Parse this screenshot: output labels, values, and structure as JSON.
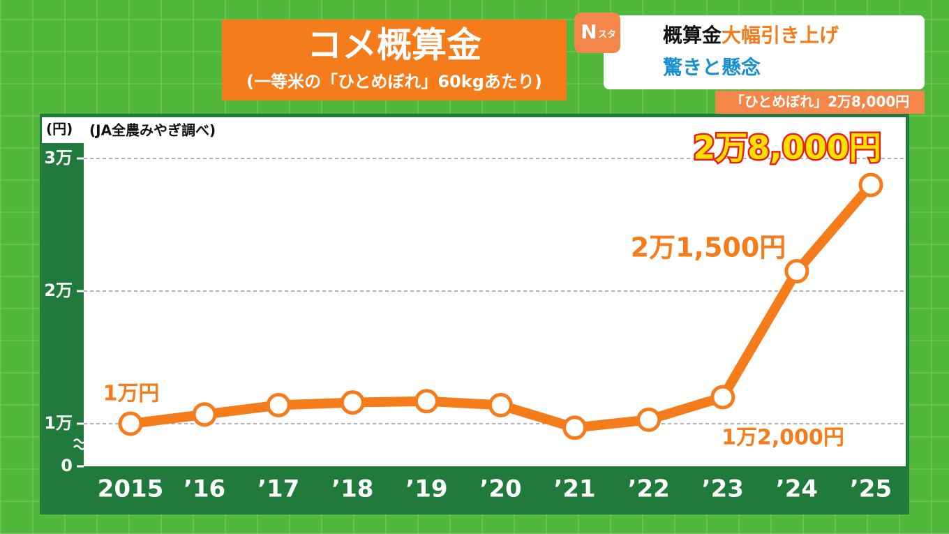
{
  "chart_data": {
    "type": "line",
    "title": "コメ概算金",
    "subtitle": "(一等米の「ひとめぼれ」60kgあたり)",
    "y_label": "(円)",
    "source": "(JA全農みやぎ調べ)",
    "categories": [
      "2015",
      "’16",
      "’17",
      "’18",
      "’19",
      "’20",
      "’21",
      "’22",
      "’23",
      "’24",
      "’25"
    ],
    "values": [
      10000,
      10700,
      11400,
      11600,
      11700,
      11400,
      9700,
      10300,
      12000,
      21500,
      28000
    ],
    "value_labels": [
      "1万円",
      null,
      null,
      null,
      null,
      null,
      null,
      null,
      "1万2,000円",
      "2万1,500円",
      "2万8,000円"
    ],
    "color": "#f57c1b",
    "ylim": [
      0,
      31000
    ],
    "y_break": [
      0,
      7000
    ],
    "yticks": [
      0,
      {
        "value": 10000,
        "label": "1万"
      },
      {
        "value": 20000,
        "label": "2万"
      },
      {
        "value": 30000,
        "label": "3万"
      }
    ],
    "grid": true
  },
  "banner": {
    "logo": {
      "letter": "N",
      "text": "スタ"
    },
    "headline": [
      "概算金",
      "大幅引き上げ"
    ],
    "subhead": "驚きと懸念",
    "ticker": "「ひとめぼれ」2万8,000円"
  }
}
